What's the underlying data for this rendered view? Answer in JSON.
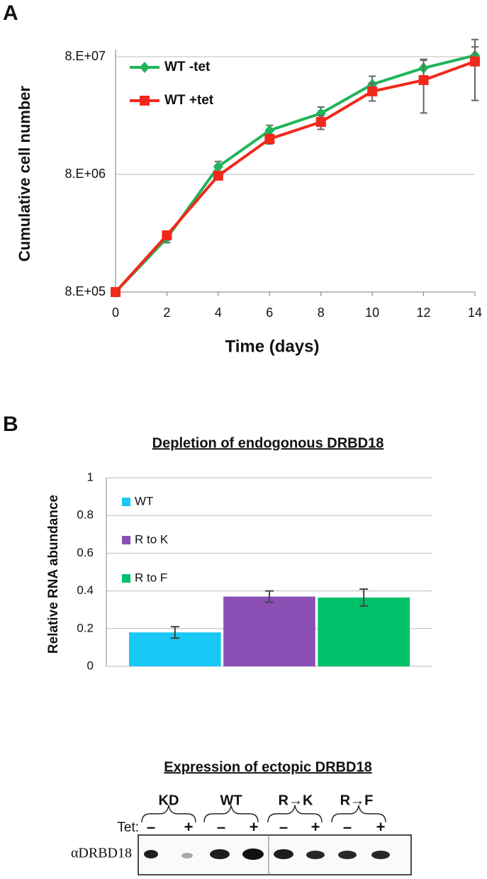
{
  "panels": [
    "A",
    "B"
  ],
  "chart_data": [
    {
      "type": "line",
      "x_label": "Time (days)",
      "y_label": "Cumulative cell number",
      "x": [
        0,
        2,
        4,
        6,
        8,
        10,
        12,
        14
      ],
      "xlim": [
        0,
        14
      ],
      "xticks": [
        0,
        2,
        4,
        6,
        8,
        10,
        12,
        14
      ],
      "ylog": true,
      "ylim": [
        800000,
        80000000
      ],
      "yticks": [
        {
          "value": 800000,
          "label": "8.E+05"
        },
        {
          "value": 8000000,
          "label": "8.E+06"
        },
        {
          "value": 80000000,
          "label": "8.E+07"
        }
      ],
      "grid": true,
      "legend": "top-left",
      "series": [
        {
          "name": "WT -tet",
          "color": "#21b45a",
          "marker": "diamond",
          "values": [
            800000,
            2300000,
            9300000,
            18900000,
            26400000,
            46600000,
            64100000,
            82000000
          ],
          "errors": [
            0,
            200000,
            1000000,
            2000000,
            3500000,
            8000000,
            12000000,
            15000000
          ]
        },
        {
          "name": "WT +tet",
          "color": "#f0291c",
          "marker": "square",
          "values": [
            800000,
            2430000,
            7800000,
            16000000,
            22300000,
            40600000,
            50600000,
            73000000
          ],
          "errors": [
            0,
            200000,
            500000,
            1500000,
            3000000,
            7000000,
            24000000,
            39000000
          ]
        }
      ]
    },
    {
      "type": "bar",
      "title": "Depletion of endogonous DRBD18",
      "y_label": "Relative RNA abundance",
      "categories": [
        null
      ],
      "ylim": [
        0,
        1
      ],
      "yticks": [
        0,
        0.2,
        0.4,
        0.6,
        0.8,
        1
      ],
      "grid": true,
      "legend": "top-left",
      "series": [
        {
          "name": "WT",
          "color": "#1ac8f5",
          "values": [
            0.18
          ],
          "errors": [
            0.03
          ]
        },
        {
          "name": "R to K",
          "color": "#8b4fb5",
          "values": [
            0.37
          ],
          "errors": [
            0.03
          ]
        },
        {
          "name": "R to F",
          "color": "#00c06a",
          "values": [
            0.365
          ],
          "errors": [
            0.045
          ]
        }
      ]
    }
  ],
  "blot": {
    "title": "Expression of ectopic DRBD18",
    "groups": [
      "KD",
      "WT",
      "R→K",
      "R→F"
    ],
    "tet_label": "Tet:",
    "tet_row": [
      "–",
      "+",
      "–",
      "+",
      "–",
      "+",
      "–",
      "+"
    ],
    "antibody": "αDRBD18"
  }
}
